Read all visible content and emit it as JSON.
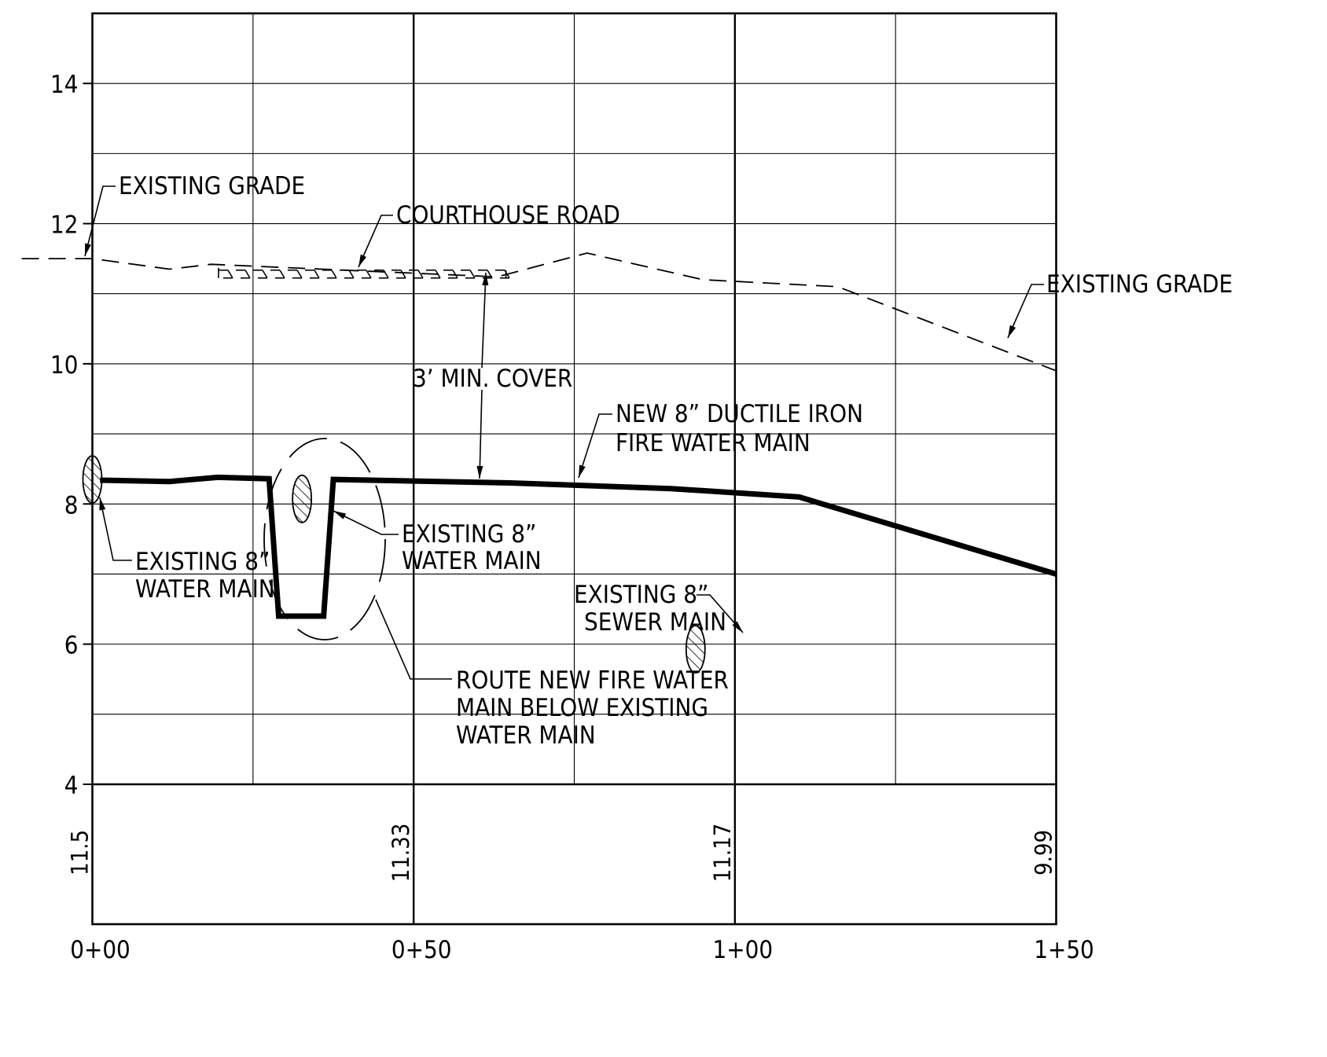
{
  "chart_data": {
    "type": "profile",
    "x_axis": {
      "range": [
        0,
        150
      ],
      "major_ticks": [
        {
          "station": 0,
          "label": "0+00"
        },
        {
          "station": 50,
          "label": "0+50"
        },
        {
          "station": 100,
          "label": "1+00"
        },
        {
          "station": 150,
          "label": "1+50"
        }
      ],
      "grid_every": 25
    },
    "y_axis": {
      "range": [
        4,
        15
      ],
      "tick_labels": [
        {
          "value": 4,
          "label": "4"
        },
        {
          "value": 6,
          "label": "6"
        },
        {
          "value": 8,
          "label": "8"
        },
        {
          "value": 10,
          "label": "10"
        },
        {
          "value": 12,
          "label": "12"
        },
        {
          "value": 14,
          "label": "14"
        }
      ],
      "grid_every": 1
    },
    "grade_elevations": [
      {
        "station": 0,
        "label": "11.5"
      },
      {
        "station": 50,
        "label": "11.33"
      },
      {
        "station": 100,
        "label": "11.17"
      },
      {
        "station": 150,
        "label": "9.99"
      }
    ],
    "existing_grade": {
      "points": [
        [
          -11,
          11.5
        ],
        [
          0,
          11.5
        ],
        [
          12,
          11.35
        ],
        [
          18.5,
          11.42
        ],
        [
          63,
          11.24
        ],
        [
          77,
          11.58
        ],
        [
          95,
          11.2
        ],
        [
          116,
          11.1
        ],
        [
          150,
          9.9
        ]
      ]
    },
    "new_main": {
      "points": [
        [
          1.2,
          8.34
        ],
        [
          12,
          8.32
        ],
        [
          19.5,
          8.38
        ],
        [
          27.5,
          8.36
        ],
        [
          29,
          6.4
        ],
        [
          36,
          6.4
        ],
        [
          37.5,
          8.35
        ],
        [
          65,
          8.3
        ],
        [
          90,
          8.22
        ],
        [
          110,
          8.1
        ],
        [
          150,
          7.0
        ]
      ]
    },
    "road": {
      "station_start": 20,
      "station_end": 64,
      "elevation": 11.28
    },
    "crossings": [
      {
        "station": 0,
        "elevation": 8.35,
        "name": "existing-water-main-left"
      },
      {
        "station": 32.5,
        "elevation": 8.05,
        "name": "existing-water-main-center"
      },
      {
        "station": 94,
        "elevation": 5.95,
        "name": "existing-sewer-main"
      }
    ],
    "labels": {
      "existing_grade_left": "EXISTING GRADE",
      "courthouse_road": "COURTHOUSE ROAD",
      "existing_grade_right": "EXISTING GRADE",
      "min_cover": "3’ MIN. COVER",
      "new_main_1": "NEW 8” DUCTILE IRON",
      "new_main_2": "FIRE WATER MAIN",
      "water_main_left_1": "EXISTING 8”",
      "water_main_left_2": "WATER MAIN",
      "water_main_center_1": "EXISTING 8”",
      "water_main_center_2": "WATER MAIN",
      "sewer_main_1": "EXISTING 8”",
      "sewer_main_2": "SEWER MAIN",
      "route_1": "ROUTE NEW FIRE WATER",
      "route_2": "MAIN BELOW EXISTING",
      "route_3": "WATER MAIN"
    }
  }
}
